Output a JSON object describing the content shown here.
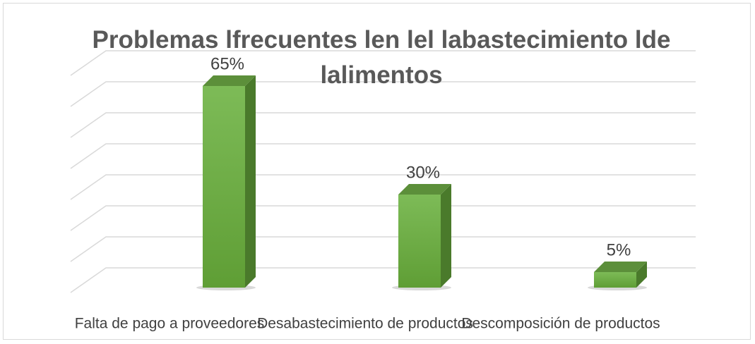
{
  "chart_data": {
    "type": "bar",
    "title": "Problemas lfrecuentes len lel labastecimiento lde lalimentos",
    "categories": [
      "Falta de pago a proveedores",
      "Desabastecimiento de productos",
      "Descomposición de productos"
    ],
    "values": [
      65,
      30,
      5
    ],
    "value_labels": [
      "65%",
      "30%",
      "5%"
    ],
    "color": "#70ad47",
    "ylim": [
      0,
      70
    ],
    "yticks": [
      0,
      10,
      20,
      30,
      40,
      50,
      60,
      70
    ],
    "grid": true
  }
}
